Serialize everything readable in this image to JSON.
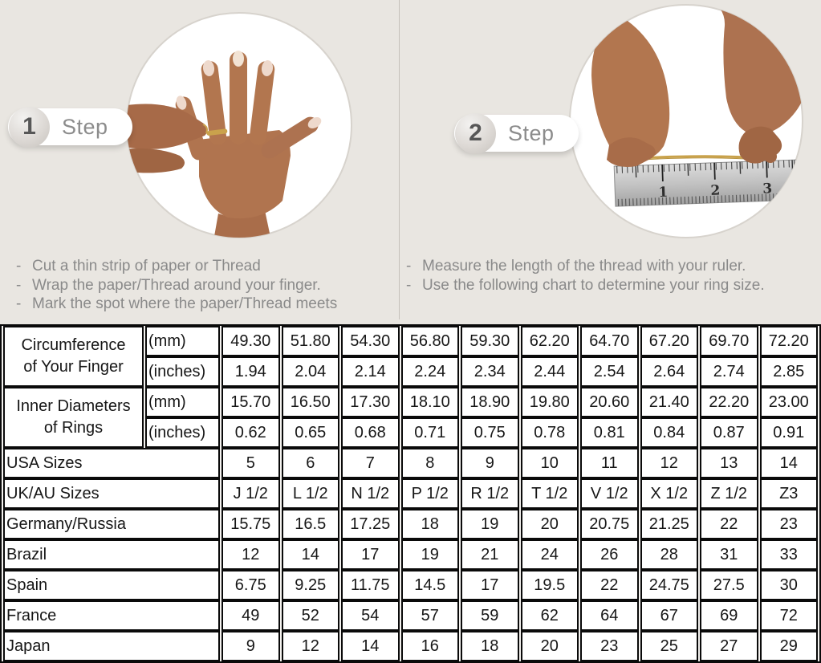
{
  "colors": {
    "page_background": "#e9e6e1",
    "table_highlight": "#d9d9d9",
    "table_border": "#0a0a0a",
    "thread_gold": "#c9a24b"
  },
  "steps": [
    {
      "number": "1",
      "label": "Step",
      "photo": "hand-with-ring-and-thread",
      "instructions": [
        "Cut a thin strip of paper or Thread",
        "Wrap the paper/Thread around your finger.",
        "Mark the spot where the paper/Thread meets"
      ]
    },
    {
      "number": "2",
      "label": "Step",
      "photo": "hands-measuring-thread-on-ruler",
      "ruler_numbers": [
        "1",
        "2",
        "3"
      ],
      "instructions": [
        "Measure the length of the thread with your ruler.",
        "Use the following chart to determine your ring size."
      ]
    }
  ],
  "size_chart": {
    "groups": [
      {
        "label": "Circumference of Your Finger",
        "label_lines": [
          "Circumference",
          "of Your Finger"
        ],
        "rows": [
          {
            "unit": "(mm)",
            "highlight": true,
            "values": [
              "49.30",
              "51.80",
              "54.30",
              "56.80",
              "59.30",
              "62.20",
              "64.70",
              "67.20",
              "69.70",
              "72.20"
            ]
          },
          {
            "unit": "(inches)",
            "highlight": false,
            "values": [
              "1.94",
              "2.04",
              "2.14",
              "2.24",
              "2.34",
              "2.44",
              "2.54",
              "2.64",
              "2.74",
              "2.85"
            ]
          }
        ]
      },
      {
        "label": "Inner Diameters of Rings",
        "label_lines": [
          "Inner Diameters",
          "of Rings"
        ],
        "rows": [
          {
            "unit": "(mm)",
            "highlight": false,
            "values": [
              "15.70",
              "16.50",
              "17.30",
              "18.10",
              "18.90",
              "19.80",
              "20.60",
              "21.40",
              "22.20",
              "23.00"
            ]
          },
          {
            "unit": "(inches)",
            "highlight": false,
            "values": [
              "0.62",
              "0.65",
              "0.68",
              "0.71",
              "0.75",
              "0.78",
              "0.81",
              "0.84",
              "0.87",
              "0.91"
            ]
          }
        ]
      }
    ],
    "simple_rows": [
      {
        "label": "USA Sizes",
        "highlight": true,
        "values": [
          "5",
          "6",
          "7",
          "8",
          "9",
          "10",
          "11",
          "12",
          "13",
          "14"
        ]
      },
      {
        "label": "UK/AU Sizes",
        "highlight": false,
        "values": [
          "J 1/2",
          "L 1/2",
          "N 1/2",
          "P 1/2",
          "R 1/2",
          "T 1/2",
          "V 1/2",
          "X 1/2",
          "Z 1/2",
          "Z3"
        ]
      },
      {
        "label": "Germany/Russia",
        "highlight": false,
        "values": [
          "15.75",
          "16.5",
          "17.25",
          "18",
          "19",
          "20",
          "20.75",
          "21.25",
          "22",
          "23"
        ]
      },
      {
        "label": "Brazil",
        "highlight": false,
        "values": [
          "12",
          "14",
          "17",
          "19",
          "21",
          "24",
          "26",
          "28",
          "31",
          "33"
        ]
      },
      {
        "label": "Spain",
        "highlight": false,
        "values": [
          "6.75",
          "9.25",
          "11.75",
          "14.5",
          "17",
          "19.5",
          "22",
          "24.75",
          "27.5",
          "30"
        ]
      },
      {
        "label": "France",
        "highlight": false,
        "values": [
          "49",
          "52",
          "54",
          "57",
          "59",
          "62",
          "64",
          "67",
          "69",
          "72"
        ]
      },
      {
        "label": "Japan",
        "highlight": false,
        "values": [
          "9",
          "12",
          "14",
          "16",
          "18",
          "20",
          "23",
          "25",
          "27",
          "29"
        ]
      }
    ]
  }
}
